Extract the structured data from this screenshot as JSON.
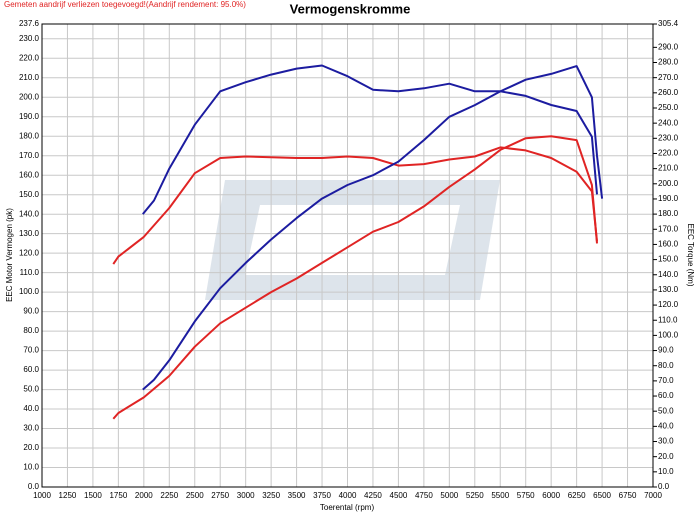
{
  "chart_data": {
    "type": "line",
    "title": "Vermogenskromme",
    "subtitle": "Gemeten aandrijf verliezen toegevoegd!(Aandrijf rendement: 95.0%)",
    "x_label": "Toerental (rpm)",
    "y_label": "EEC Motor Vermogen (pk)",
    "y2_label": "EEC Torque (Nm)",
    "grid": true,
    "xlim": [
      1000,
      7000
    ],
    "xticks": [
      1000,
      1250,
      1500,
      1750,
      2000,
      2250,
      2500,
      2750,
      3000,
      3250,
      3500,
      3750,
      4000,
      4250,
      4500,
      4750,
      5000,
      5250,
      5500,
      5750,
      6000,
      6250,
      6500,
      6750,
      7000
    ],
    "ylim": [
      0,
      237.6
    ],
    "yticks": [
      {
        "value": 0,
        "label": "0.0"
      },
      {
        "value": 10,
        "label": "10.0"
      },
      {
        "value": 20,
        "label": "20.0"
      },
      {
        "value": 30,
        "label": "30.0"
      },
      {
        "value": 40,
        "label": "40.0"
      },
      {
        "value": 50,
        "label": "50.0"
      },
      {
        "value": 60,
        "label": "60.0"
      },
      {
        "value": 70,
        "label": "70.0"
      },
      {
        "value": 80,
        "label": "80.0"
      },
      {
        "value": 90,
        "label": "90.0"
      },
      {
        "value": 100,
        "label": "100.0"
      },
      {
        "value": 110,
        "label": "110.0"
      },
      {
        "value": 120,
        "label": "120.0"
      },
      {
        "value": 130,
        "label": "130.0"
      },
      {
        "value": 140,
        "label": "140.0"
      },
      {
        "value": 150,
        "label": "150.0"
      },
      {
        "value": 160,
        "label": "160.0"
      },
      {
        "value": 170,
        "label": "170.0"
      },
      {
        "value": 180,
        "label": "180.0"
      },
      {
        "value": 190,
        "label": "190.0"
      },
      {
        "value": 200,
        "label": "200.0"
      },
      {
        "value": 210,
        "label": "210.0"
      },
      {
        "value": 220,
        "label": "220.0"
      },
      {
        "value": 230,
        "label": "230.0"
      },
      237.6
    ],
    "y2lim": [
      0,
      305.4
    ],
    "y2ticks": [
      {
        "value": 0,
        "label": "0.0"
      },
      {
        "value": 10,
        "label": "10.0"
      },
      {
        "value": 20,
        "label": "20.0"
      },
      {
        "value": 30,
        "label": "30.0"
      },
      {
        "value": 40,
        "label": "40.0"
      },
      {
        "value": 50,
        "label": "50.0"
      },
      {
        "value": 60,
        "label": "60.0"
      },
      {
        "value": 70,
        "label": "70.0"
      },
      {
        "value": 80,
        "label": "80.0"
      },
      {
        "value": 90,
        "label": "90.0"
      },
      {
        "value": 100,
        "label": "100.0"
      },
      {
        "value": 110,
        "label": "110.0"
      },
      {
        "value": 120,
        "label": "120.0"
      },
      {
        "value": 130,
        "label": "130.0"
      },
      {
        "value": 140,
        "label": "140.0"
      },
      {
        "value": 150,
        "label": "150.0"
      },
      {
        "value": 160,
        "label": "160.0"
      },
      {
        "value": 170,
        "label": "170.0"
      },
      {
        "value": 180,
        "label": "180.0"
      },
      {
        "value": 190,
        "label": "190.0"
      },
      {
        "value": 200,
        "label": "200.0"
      },
      {
        "value": 210,
        "label": "210.0"
      },
      {
        "value": 220,
        "label": "220.0"
      },
      {
        "value": 230,
        "label": "230.0"
      },
      {
        "value": 240,
        "label": "240.0"
      },
      {
        "value": 250,
        "label": "250.0"
      },
      {
        "value": 260,
        "label": "260.0"
      },
      {
        "value": 270,
        "label": "270.0"
      },
      {
        "value": 280,
        "label": "280.0"
      },
      {
        "value": 290,
        "label": "290.0"
      },
      305.4
    ],
    "series": [
      {
        "color": "#1c1ca0",
        "axis": "y2",
        "x": [
          1990,
          2100,
          2250,
          2500,
          2750,
          3000,
          3250,
          3500,
          3750,
          4000,
          4250,
          4500,
          4750,
          5000,
          5250,
          5500,
          5750,
          6000,
          6250,
          6400,
          6450
        ],
        "values": [
          180,
          189,
          210,
          239,
          261,
          267,
          272,
          276,
          278,
          271,
          262,
          261,
          263,
          266,
          261,
          261,
          258,
          252,
          248,
          231,
          193
        ]
      },
      {
        "color": "#e02424",
        "axis": "y2",
        "x": [
          1700,
          1750,
          2000,
          2250,
          2500,
          2750,
          3000,
          3500,
          3750,
          4000,
          4250,
          4500,
          4750,
          5000,
          5250,
          5500,
          5750,
          6000,
          6250,
          6400,
          6450
        ],
        "values": [
          147,
          152,
          165,
          184,
          207,
          217,
          218,
          217,
          217,
          218,
          217,
          212,
          213,
          216,
          218,
          224,
          222,
          217,
          208,
          195,
          162
        ]
      },
      {
        "color": "#1c1ca0",
        "x": [
          1990,
          2100,
          2250,
          2500,
          2750,
          3000,
          3250,
          3500,
          3750,
          4000,
          4250,
          4500,
          4750,
          5000,
          5250,
          5500,
          5750,
          6000,
          6250,
          6400,
          6450,
          6500
        ],
        "values": [
          50,
          55,
          65,
          85,
          102,
          115,
          127,
          138,
          148,
          155,
          160,
          167,
          178,
          190,
          196,
          203,
          209,
          212,
          216,
          200,
          170,
          148
        ]
      },
      {
        "color": "#e02424",
        "x": [
          1700,
          1750,
          2000,
          2250,
          2500,
          2750,
          3000,
          3250,
          3500,
          3750,
          4000,
          4250,
          4500,
          4750,
          5000,
          5250,
          5500,
          5750,
          6000,
          6250,
          6400,
          6450
        ],
        "values": [
          35,
          38,
          46,
          57,
          72,
          84,
          92,
          100,
          107,
          115,
          123,
          131,
          136,
          144,
          154,
          163,
          173,
          179,
          180,
          178,
          155,
          125
        ]
      }
    ]
  }
}
